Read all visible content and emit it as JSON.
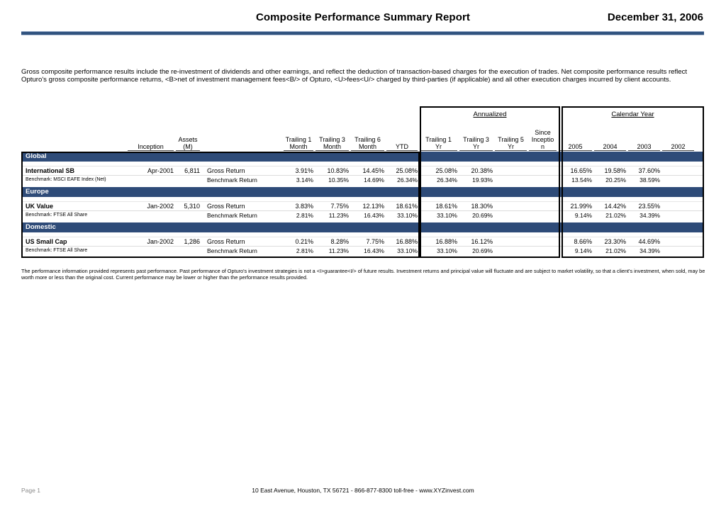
{
  "header": {
    "title": "Composite Performance Summary Report",
    "date": "December 31, 2006"
  },
  "intro": "Gross composite performance results include the re-investment of dividends and other earnings, and reflect the deduction of transaction-based charges for the execution of trades. Net composite performance results reflect Opturo's gross composite performance returns, <B>net of investment management fees<B/> of Opturo, <U>fees<U/> charged by third-parties (if applicable) and all other execution charges incurred by client accounts.",
  "table": {
    "group_headers": {
      "annualized": "Annualized",
      "calendar_year": "Calendar Year"
    },
    "columns": {
      "inception": "Inception",
      "assets": "Assets\n(M)",
      "t1m": "Trailing 1\nMonth",
      "t3m": "Trailing 3\nMonth",
      "t6m": "Trailing 6\nMonth",
      "ytd": "YTD",
      "t1y": "Trailing 1\nYr",
      "t3y": "Trailing 3\nYr",
      "t5y": "Trailing 5\nYr",
      "since": "Since\nInceptio\nn",
      "y2005": "2005",
      "y2004": "2004",
      "y2003": "2003",
      "y2002": "2002"
    },
    "gross_label": "Gross Return",
    "benchmark_label": "Benchmark Return",
    "sections": [
      {
        "label": "Global",
        "composite": "International SB",
        "benchmark": "Benchmark: MSCI EAFE Index (Net)",
        "inception": "Apr-2001",
        "assets": "6,811",
        "gross": {
          "t1m": "3.91%",
          "t3m": "10.83%",
          "t6m": "14.45%",
          "ytd": "25.08%",
          "t1y": "25.08%",
          "t3y": "20.38%",
          "t5y": "",
          "since": "",
          "y2005": "16.65%",
          "y2004": "19.58%",
          "y2003": "37.60%",
          "y2002": ""
        },
        "bench": {
          "t1m": "3.14%",
          "t3m": "10.35%",
          "t6m": "14.69%",
          "ytd": "26.34%",
          "t1y": "26.34%",
          "t3y": "19.93%",
          "t5y": "",
          "since": "",
          "y2005": "13.54%",
          "y2004": "20.25%",
          "y2003": "38.59%",
          "y2002": ""
        }
      },
      {
        "label": "Europe",
        "composite": "UK Value",
        "benchmark": "Benchmark: FTSE All Share",
        "inception": "Jan-2002",
        "assets": "5,310",
        "gross": {
          "t1m": "3.83%",
          "t3m": "7.75%",
          "t6m": "12.13%",
          "ytd": "18.61%",
          "t1y": "18.61%",
          "t3y": "18.30%",
          "t5y": "",
          "since": "",
          "y2005": "21.99%",
          "y2004": "14.42%",
          "y2003": "23.55%",
          "y2002": ""
        },
        "bench": {
          "t1m": "2.81%",
          "t3m": "11.23%",
          "t6m": "16.43%",
          "ytd": "33.10%",
          "t1y": "33.10%",
          "t3y": "20.69%",
          "t5y": "",
          "since": "",
          "y2005": "9.14%",
          "y2004": "21.02%",
          "y2003": "34.39%",
          "y2002": ""
        }
      },
      {
        "label": "Domestic",
        "composite": "US Small Cap",
        "benchmark": "Benchmark: FTSE All Share",
        "inception": "Jan-2002",
        "assets": "1,286",
        "gross": {
          "t1m": "0.21%",
          "t3m": "8.28%",
          "t6m": "7.75%",
          "ytd": "16.88%",
          "t1y": "16.88%",
          "t3y": "16.12%",
          "t5y": "",
          "since": "",
          "y2005": "8.66%",
          "y2004": "23.30%",
          "y2003": "44.69%",
          "y2002": ""
        },
        "bench": {
          "t1m": "2.81%",
          "t3m": "11.23%",
          "t6m": "16.43%",
          "ytd": "33.10%",
          "t1y": "33.10%",
          "t3y": "20.69%",
          "t5y": "",
          "since": "",
          "y2005": "9.14%",
          "y2004": "21.02%",
          "y2003": "34.39%",
          "y2002": ""
        }
      }
    ]
  },
  "disclaimer": "The performance information provided represents past performance. Past performance of Opturo's investment strategies is not a <I>guarantee<I/> of future results. Investment returns and principal value will fluctuate and are subject to market volatility, so that a client's investment, when sold, may be worth more or less than the original cost. Current performance may be lower or higher than the performance results provided.",
  "footer": {
    "page": "Page 1",
    "contact": "10 East Avenue, Houston, TX 56721 - 866-877-8300 toll-free - www.XYZinvest.com"
  },
  "colors": {
    "band_navy": "#2e4b78",
    "rule_blue": "#31537f"
  }
}
